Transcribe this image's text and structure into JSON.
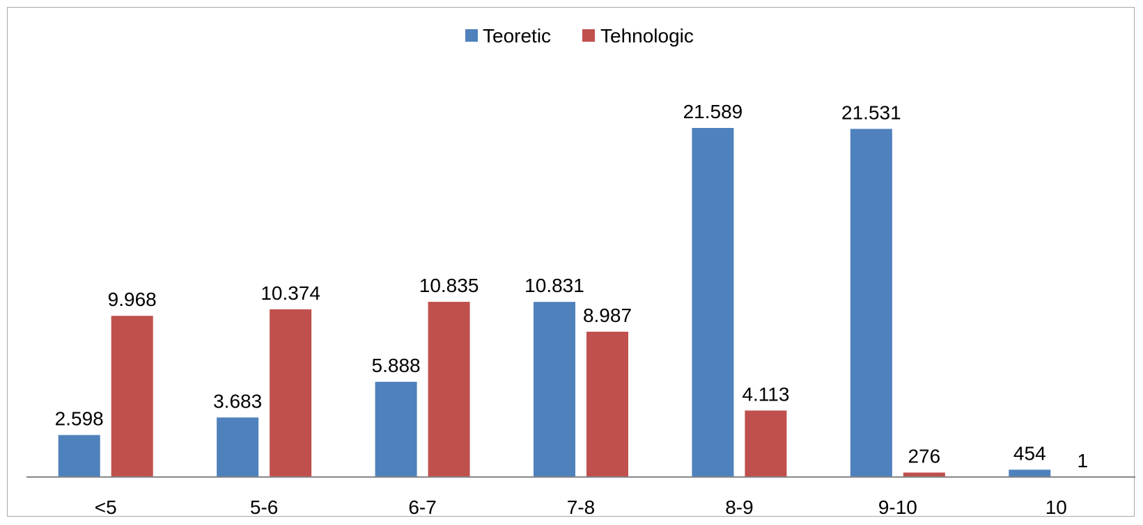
{
  "chart_data": {
    "type": "bar",
    "categories": [
      "<5",
      "5-6",
      "6-7",
      "7-8",
      "8-9",
      "9-10",
      "10"
    ],
    "series": [
      {
        "name": "Teoretic",
        "color": "#4F81BD",
        "values": [
          2598,
          3683,
          5888,
          10831,
          21589,
          21531,
          454
        ],
        "labels": [
          "2.598",
          "3.683",
          "5.888",
          "10.831",
          "21.589",
          "21.531",
          "454"
        ]
      },
      {
        "name": "Tehnologic",
        "color": "#C0504D",
        "values": [
          9968,
          10374,
          10835,
          8987,
          4113,
          276,
          1
        ],
        "labels": [
          "9.968",
          "10.374",
          "10.835",
          "8.987",
          "4.113",
          "276",
          "1"
        ]
      }
    ],
    "title": "",
    "xlabel": "",
    "ylabel": "",
    "ylim": [
      0,
      24000
    ],
    "grid": false,
    "legend": "top-center",
    "axis_color": "#868686"
  }
}
